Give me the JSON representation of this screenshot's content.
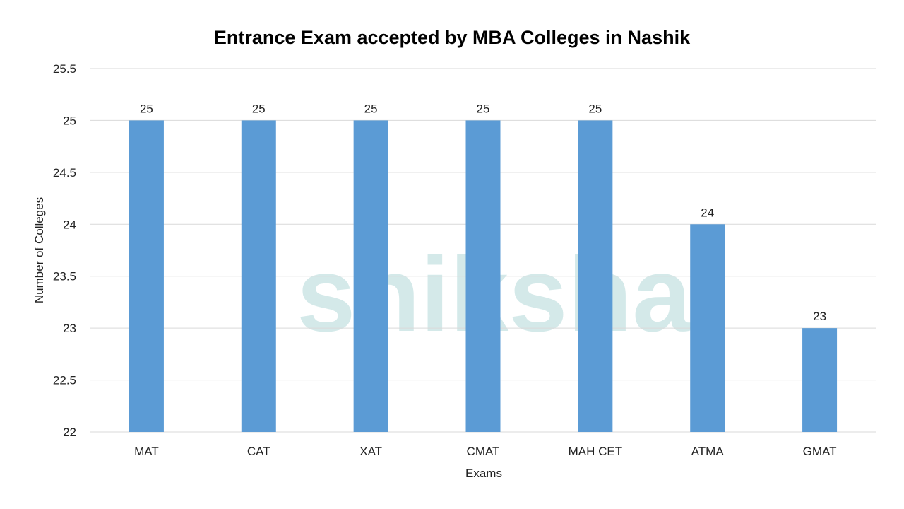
{
  "chart_data": {
    "type": "bar",
    "title": "Entrance Exam accepted by MBA Colleges in Nashik",
    "xlabel": "Exams",
    "ylabel": "Number of Colleges",
    "categories": [
      "MAT",
      "CAT",
      "XAT",
      "CMAT",
      "MAH CET",
      "ATMA",
      "GMAT"
    ],
    "values": [
      25,
      25,
      25,
      25,
      25,
      24,
      23
    ],
    "data_labels": [
      "25",
      "25",
      "25",
      "25",
      "25",
      "24",
      "23"
    ],
    "ylim": [
      22,
      25.5
    ],
    "yticks": [
      "22",
      "22.5",
      "23",
      "23.5",
      "24",
      "24.5",
      "25",
      "25.5"
    ],
    "grid": true,
    "legend": "none",
    "bar_color": "#5B9BD5",
    "watermark": "shiksha"
  }
}
